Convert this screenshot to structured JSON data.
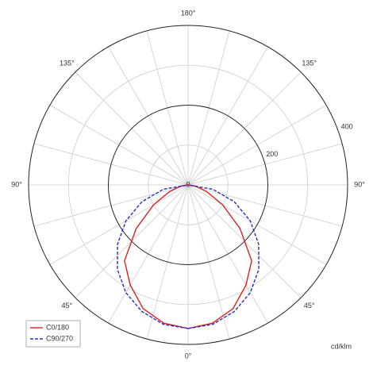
{
  "chart_data": {
    "type": "polar",
    "unit": "cd/klm",
    "angles": [
      0,
      10,
      20,
      30,
      40,
      50,
      60,
      70,
      80,
      90
    ],
    "series": [
      {
        "name": "C0/180",
        "color": "#e02020",
        "dash": false,
        "values": [
          360,
          352,
          330,
          290,
          248,
          170,
          100,
          50,
          20,
          0
        ]
      },
      {
        "name": "C90/270",
        "color": "#2030c0",
        "dash": true,
        "values": [
          360,
          355,
          338,
          312,
          276,
          231,
          180,
          123,
          63,
          0
        ]
      }
    ],
    "rlim": [
      0,
      400
    ],
    "rticks": [
      200,
      400
    ],
    "rgrid": [
      100,
      300
    ],
    "agrid": 15,
    "angle_labels": [
      {
        "value": 180,
        "label": "180°"
      },
      {
        "value": -135,
        "label": "135°"
      },
      {
        "value": 135,
        "label": "135°"
      },
      {
        "value": -90,
        "label": "90°"
      },
      {
        "value": 90,
        "label": "90°"
      },
      {
        "value": -45,
        "label": "45°"
      },
      {
        "value": 45,
        "label": "45°"
      },
      {
        "value": 0,
        "label": "0°"
      }
    ],
    "legend": "lower left"
  }
}
